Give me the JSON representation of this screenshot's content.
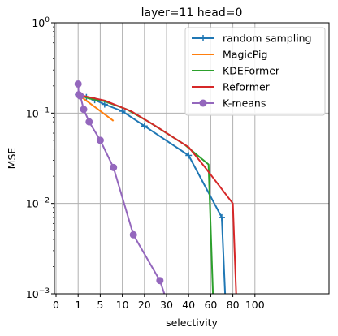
{
  "chart_data": {
    "type": "line",
    "title": "layer=11 head=0",
    "xlabel": "selectivity",
    "ylabel": "MSE",
    "y_scale": "log",
    "ylim": [
      0.001,
      1
    ],
    "y_ticks": [
      {
        "value": 1,
        "base": "10",
        "exp": "0"
      },
      {
        "value": 0.1,
        "base": "10",
        "exp": "−1"
      },
      {
        "value": 0.01,
        "base": "10",
        "exp": "−2"
      },
      {
        "value": 0.001,
        "base": "10",
        "exp": "−3"
      }
    ],
    "x_scale": "tick-warped (non-uniform, labels as printed)",
    "xlim": [
      0,
      110
    ],
    "x_ticks": [
      0,
      1,
      5,
      10,
      20,
      30,
      40,
      60,
      80,
      100
    ],
    "grid": true,
    "legend_position": "top-right",
    "series": [
      {
        "name": "random sampling",
        "color": "#1f77b4",
        "marker": "plus",
        "points": [
          [
            1,
            0.16
          ],
          [
            1.5,
            0.155
          ],
          [
            2.5,
            0.15
          ],
          [
            4,
            0.14
          ],
          [
            6,
            0.125
          ],
          [
            10,
            0.105
          ],
          [
            20,
            0.072
          ],
          [
            40,
            0.034
          ],
          [
            70,
            0.007
          ],
          [
            73,
            0.001
          ]
        ]
      },
      {
        "name": "MagicPig",
        "color": "#ff7f0e",
        "marker": "none",
        "points": [
          [
            1,
            0.16
          ],
          [
            3,
            0.13
          ],
          [
            8,
            0.082
          ]
        ]
      },
      {
        "name": "KDEFormer",
        "color": "#2ca02c",
        "marker": "none",
        "points": [
          [
            1,
            0.16
          ],
          [
            3,
            0.145
          ],
          [
            6,
            0.135
          ],
          [
            12,
            0.11
          ],
          [
            22,
            0.08
          ],
          [
            38,
            0.045
          ],
          [
            58,
            0.027
          ],
          [
            62,
            0.001
          ]
        ]
      },
      {
        "name": "Reformer",
        "color": "#d62728",
        "marker": "none",
        "points": [
          [
            1,
            0.16
          ],
          [
            3,
            0.15
          ],
          [
            6,
            0.138
          ],
          [
            14,
            0.105
          ],
          [
            25,
            0.072
          ],
          [
            40,
            0.042
          ],
          [
            55,
            0.025
          ],
          [
            80,
            0.01
          ],
          [
            83,
            0.001
          ]
        ]
      },
      {
        "name": "K-means",
        "color": "#9467bd",
        "marker": "circle",
        "points": [
          [
            1,
            0.21
          ],
          [
            1.1,
            0.16
          ],
          [
            1.4,
            0.155
          ],
          [
            2,
            0.11
          ],
          [
            3,
            0.08
          ],
          [
            5,
            0.05
          ],
          [
            8,
            0.025
          ],
          [
            15,
            0.0045
          ],
          [
            27,
            0.0014
          ],
          [
            29,
            0.001
          ]
        ]
      }
    ]
  }
}
